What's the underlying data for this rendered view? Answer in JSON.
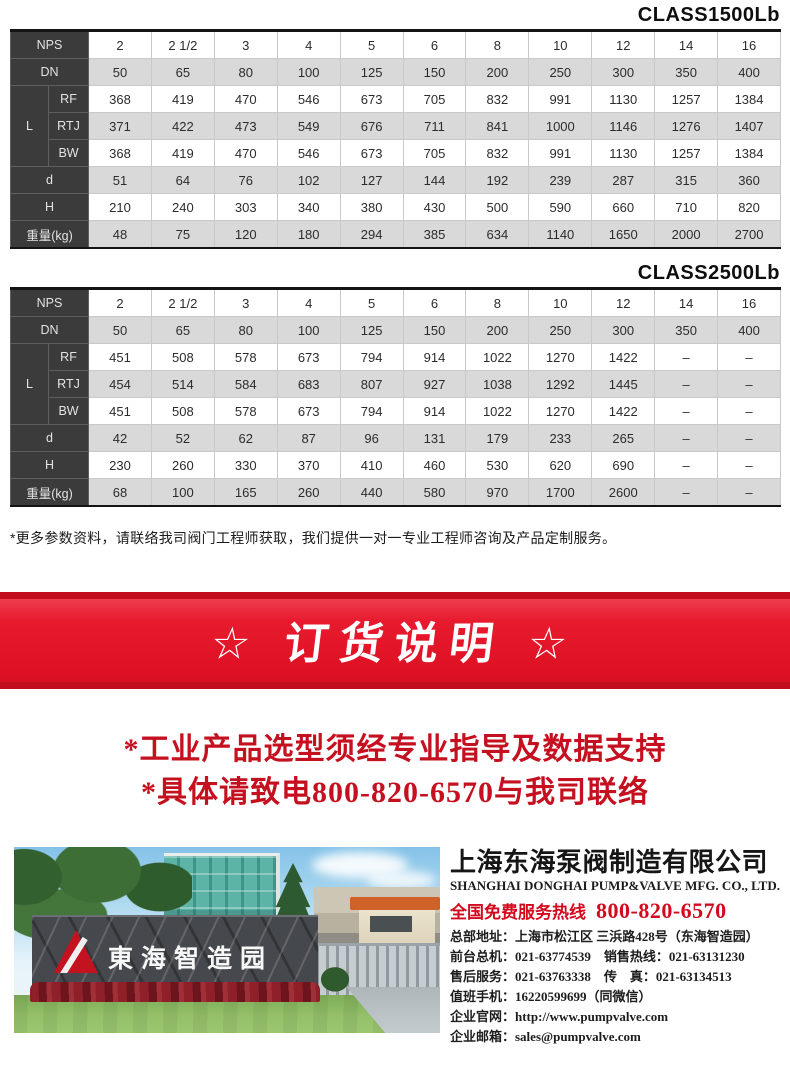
{
  "tables": [
    {
      "title": "CLASS1500Lb",
      "corner_label": "NPS",
      "columns": [
        "2",
        "2 1/2",
        "3",
        "4",
        "5",
        "6",
        "8",
        "10",
        "12",
        "14",
        "16"
      ],
      "rows": [
        {
          "label": "DN",
          "values": [
            "50",
            "65",
            "80",
            "100",
            "125",
            "150",
            "200",
            "250",
            "300",
            "350",
            "400"
          ]
        },
        {
          "group": "L",
          "label": "RF",
          "values": [
            "368",
            "419",
            "470",
            "546",
            "673",
            "705",
            "832",
            "991",
            "1130",
            "1257",
            "1384"
          ]
        },
        {
          "group": "L",
          "label": "RTJ",
          "values": [
            "371",
            "422",
            "473",
            "549",
            "676",
            "711",
            "841",
            "1000",
            "1146",
            "1276",
            "1407"
          ]
        },
        {
          "group": "L",
          "label": "BW",
          "values": [
            "368",
            "419",
            "470",
            "546",
            "673",
            "705",
            "832",
            "991",
            "1130",
            "1257",
            "1384"
          ]
        },
        {
          "label": "d",
          "values": [
            "51",
            "64",
            "76",
            "102",
            "127",
            "144",
            "192",
            "239",
            "287",
            "315",
            "360"
          ]
        },
        {
          "label": "H",
          "values": [
            "210",
            "240",
            "303",
            "340",
            "380",
            "430",
            "500",
            "590",
            "660",
            "710",
            "820"
          ]
        },
        {
          "label": "重量(kg)",
          "values": [
            "48",
            "75",
            "120",
            "180",
            "294",
            "385",
            "634",
            "1140",
            "1650",
            "2000",
            "2700"
          ]
        }
      ]
    },
    {
      "title": "CLASS2500Lb",
      "corner_label": "NPS",
      "columns": [
        "2",
        "2 1/2",
        "3",
        "4",
        "5",
        "6",
        "8",
        "10",
        "12",
        "14",
        "16"
      ],
      "rows": [
        {
          "label": "DN",
          "values": [
            "50",
            "65",
            "80",
            "100",
            "125",
            "150",
            "200",
            "250",
            "300",
            "350",
            "400"
          ]
        },
        {
          "group": "L",
          "label": "RF",
          "values": [
            "451",
            "508",
            "578",
            "673",
            "794",
            "914",
            "1022",
            "1270",
            "1422",
            "–",
            "–"
          ]
        },
        {
          "group": "L",
          "label": "RTJ",
          "values": [
            "454",
            "514",
            "584",
            "683",
            "807",
            "927",
            "1038",
            "1292",
            "1445",
            "–",
            "–"
          ]
        },
        {
          "group": "L",
          "label": "BW",
          "values": [
            "451",
            "508",
            "578",
            "673",
            "794",
            "914",
            "1022",
            "1270",
            "1422",
            "–",
            "–"
          ]
        },
        {
          "label": "d",
          "values": [
            "42",
            "52",
            "62",
            "87",
            "96",
            "131",
            "179",
            "233",
            "265",
            "–",
            "–"
          ]
        },
        {
          "label": "H",
          "values": [
            "230",
            "260",
            "330",
            "370",
            "410",
            "460",
            "530",
            "620",
            "690",
            "–",
            "–"
          ]
        },
        {
          "label": "重量(kg)",
          "values": [
            "68",
            "100",
            "165",
            "260",
            "440",
            "580",
            "970",
            "1700",
            "2600",
            "–",
            "–"
          ]
        }
      ]
    }
  ],
  "footnote": "*更多参数资料，请联络我司阀门工程师获取，我们提供一对一专业工程师咨询及产品定制服务。",
  "banner": {
    "title": "☆ 订货说明 ☆",
    "bg_color": "#e2122a"
  },
  "notices": [
    "*工业产品选型须经专业指导及数据支持",
    "*具体请致电800-820-6570与我司联络"
  ],
  "photo": {
    "sign_text": "東海智造园"
  },
  "company": {
    "name_cn": "上海东海泵阀制造有限公司",
    "name_en": "SHANGHAI DONGHAI PUMP&VALVE MFG. CO., LTD.",
    "hotline_label": "全国免费服务热线",
    "hotline_number": "800-820-6570",
    "hotline_color": "#d30a1e",
    "contact_lines": [
      "总部地址：上海市松江区 三浜路428号（东海智造园）",
      "前台总机：021-63774539　销售热线：021-63131230",
      "售后服务：021-63763338　传　真：021-63134513",
      "值班手机：16220599699（同微信）",
      "企业官网：http://www.pumpvalve.com",
      "企业邮箱：sales@pumpvalve.com"
    ]
  }
}
